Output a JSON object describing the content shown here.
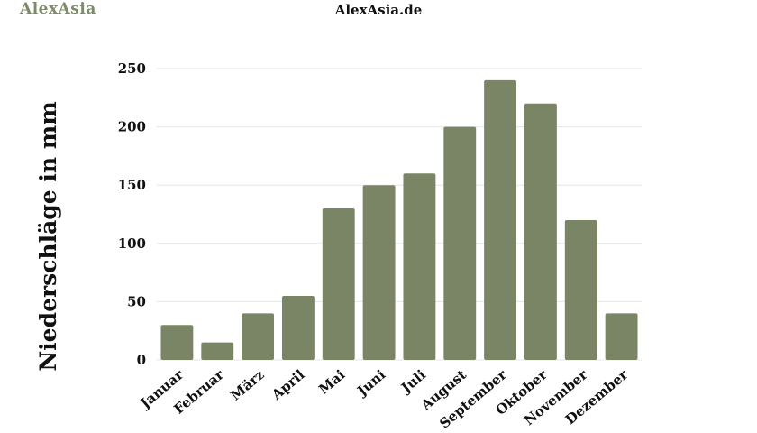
{
  "brand": {
    "logo_text": "AlexAsia"
  },
  "chart_data": {
    "type": "bar",
    "title": "AlexAsia.de",
    "ylabel": "Niederschläge in mm",
    "xlabel": "",
    "categories": [
      "Januar",
      "Februar",
      "März",
      "April",
      "Mai",
      "Juni",
      "Juli",
      "August",
      "September",
      "Oktober",
      "November",
      "Dezember"
    ],
    "values": [
      30,
      15,
      40,
      55,
      130,
      150,
      160,
      200,
      240,
      220,
      120,
      40
    ],
    "ylim": [
      0,
      250
    ],
    "yticks": [
      0,
      50,
      100,
      150,
      200,
      250
    ],
    "grid": true,
    "legend": "none",
    "bar_color": "#7a8566"
  }
}
